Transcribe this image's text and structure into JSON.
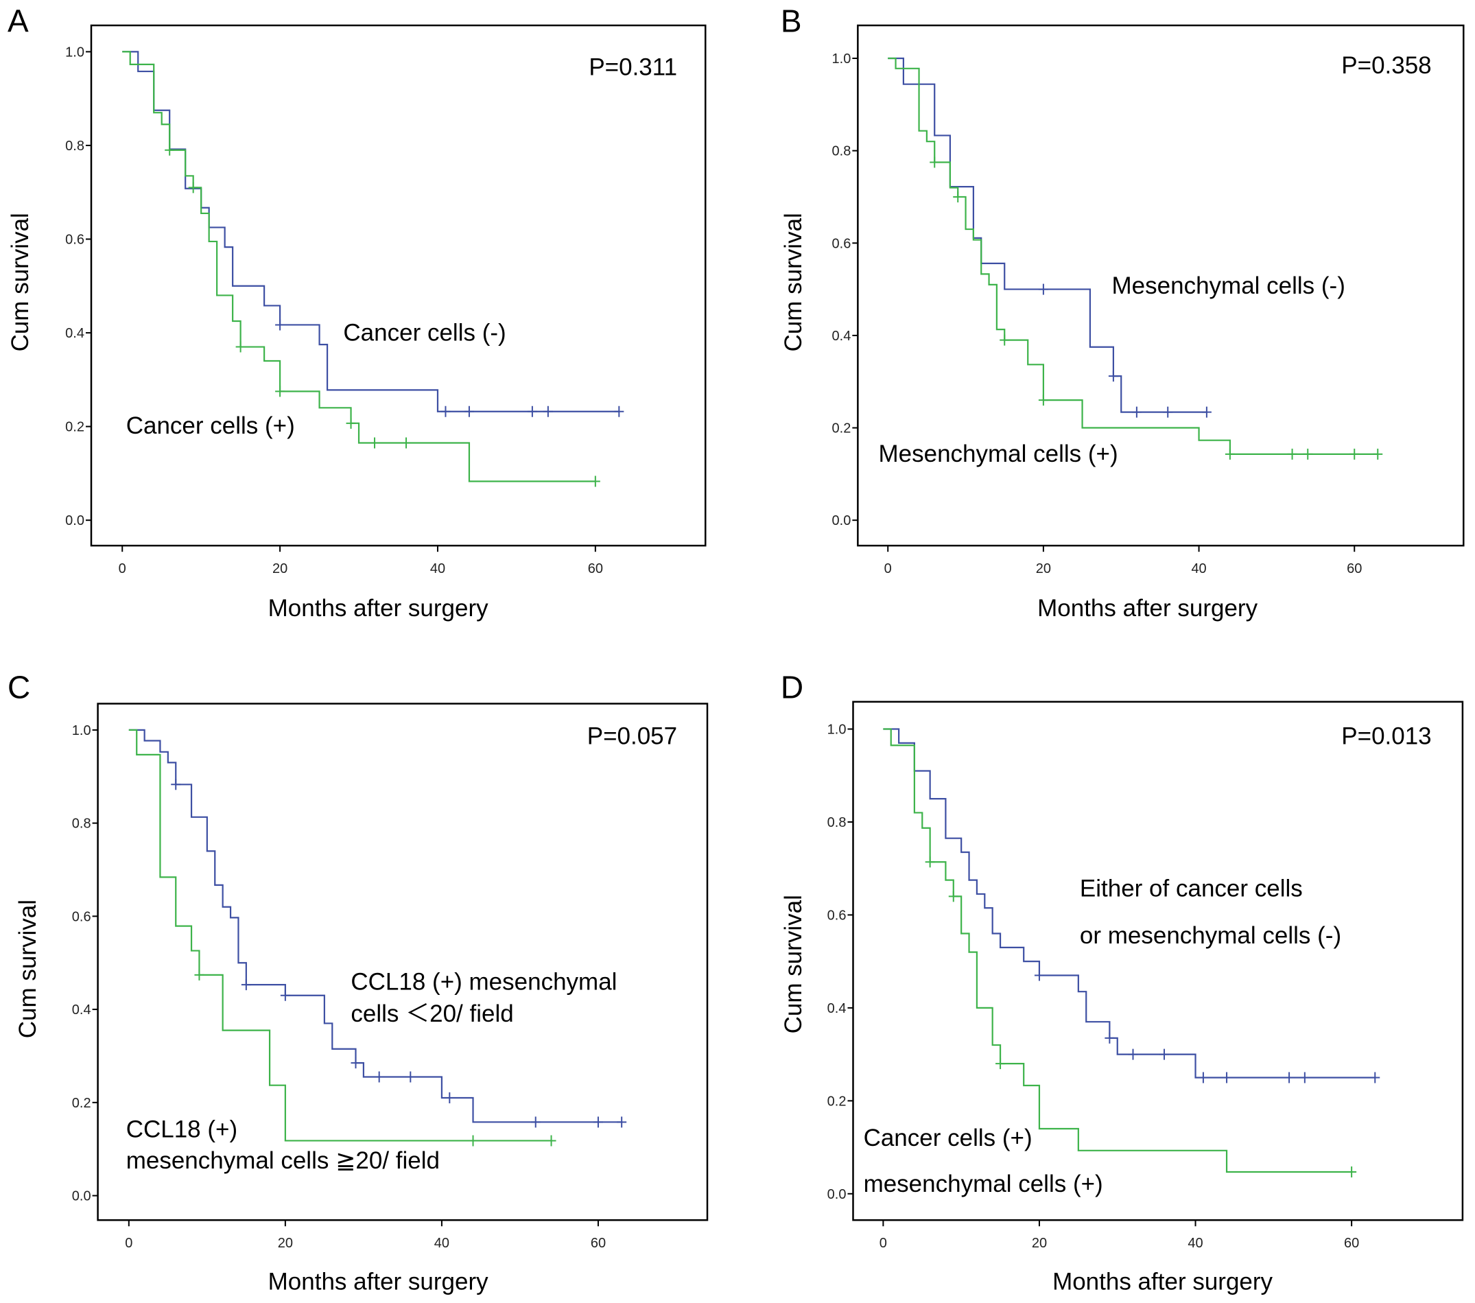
{
  "colors": {
    "blue": "#3d4fa3",
    "green": "#3db34a"
  },
  "chart_data": [
    {
      "type": "line",
      "subtype": "kaplan-meier",
      "panel": "A",
      "p_value": "P=0.311",
      "xlabel": "Months after surgery",
      "ylabel": "Cum survival",
      "xlim": [
        0,
        70
      ],
      "ylim": [
        0,
        1.0
      ],
      "xticks": [
        "0",
        "20",
        "40",
        "60"
      ],
      "yticks": [
        "0.0",
        "0.2",
        "0.4",
        "0.6",
        "0.8",
        "1.0"
      ],
      "labels": [
        "Cancer cells (-)",
        "Cancer cells (+)"
      ],
      "series": [
        {
          "name": "Cancer cells (-)",
          "color": "blue",
          "end": 63,
          "steps": [
            [
              0,
              1
            ],
            [
              2,
              0.958
            ],
            [
              4,
              0.875
            ],
            [
              6,
              0.792
            ],
            [
              8,
              0.708
            ],
            [
              10,
              0.667
            ],
            [
              11,
              0.625
            ],
            [
              13,
              0.583
            ],
            [
              14,
              0.5
            ],
            [
              18,
              0.458
            ],
            [
              20,
              0.417
            ],
            [
              25,
              0.375
            ],
            [
              26,
              0.278
            ],
            [
              40,
              0.232
            ]
          ],
          "censored": [
            20,
            41,
            44,
            52,
            54,
            63
          ]
        },
        {
          "name": "Cancer cells (+)",
          "color": "green",
          "end": 60,
          "steps": [
            [
              0,
              1
            ],
            [
              1,
              0.973
            ],
            [
              4,
              0.87
            ],
            [
              5,
              0.845
            ],
            [
              6,
              0.79
            ],
            [
              8,
              0.735
            ],
            [
              9,
              0.71
            ],
            [
              10,
              0.655
            ],
            [
              11,
              0.595
            ],
            [
              12,
              0.48
            ],
            [
              14,
              0.425
            ],
            [
              15,
              0.37
            ],
            [
              18,
              0.34
            ],
            [
              20,
              0.275
            ],
            [
              25,
              0.24
            ],
            [
              29,
              0.207
            ],
            [
              30,
              0.165
            ],
            [
              44,
              0.083
            ]
          ],
          "censored": [
            6,
            9,
            15,
            20,
            29,
            32,
            36,
            60
          ]
        }
      ]
    },
    {
      "type": "line",
      "subtype": "kaplan-meier",
      "panel": "B",
      "p_value": "P=0.358",
      "xlabel": "Months after surgery",
      "ylabel": "Cum survival",
      "xlim": [
        0,
        70
      ],
      "ylim": [
        0,
        1.0
      ],
      "xticks": [
        "0",
        "20",
        "40",
        "60"
      ],
      "yticks": [
        "0.0",
        "0.2",
        "0.4",
        "0.6",
        "0.8",
        "1.0"
      ],
      "labels": [
        "Mesenchymal cells (-)",
        "Mesenchymal cells (+)"
      ],
      "series": [
        {
          "name": "Mesenchymal cells (-)",
          "color": "blue",
          "end": 41,
          "steps": [
            [
              0,
              1
            ],
            [
              2,
              0.944
            ],
            [
              6,
              0.833
            ],
            [
              8,
              0.722
            ],
            [
              11,
              0.611
            ],
            [
              12,
              0.556
            ],
            [
              15,
              0.5
            ],
            [
              26,
              0.375
            ],
            [
              29,
              0.312
            ],
            [
              30,
              0.234
            ]
          ],
          "censored": [
            20,
            29,
            32,
            36,
            41
          ]
        },
        {
          "name": "Mesenchymal cells (+)",
          "color": "green",
          "end": 63,
          "steps": [
            [
              0,
              1
            ],
            [
              1,
              0.978
            ],
            [
              4,
              0.843
            ],
            [
              5,
              0.82
            ],
            [
              6,
              0.775
            ],
            [
              8,
              0.72
            ],
            [
              9,
              0.7
            ],
            [
              10,
              0.63
            ],
            [
              11,
              0.607
            ],
            [
              12,
              0.533
            ],
            [
              13,
              0.51
            ],
            [
              14,
              0.413
            ],
            [
              15,
              0.39
            ],
            [
              18,
              0.337
            ],
            [
              20,
              0.26
            ],
            [
              25,
              0.2
            ],
            [
              40,
              0.173
            ],
            [
              44,
              0.143
            ]
          ],
          "censored": [
            6,
            9,
            15,
            20,
            44,
            52,
            54,
            60,
            63
          ]
        }
      ]
    },
    {
      "type": "line",
      "subtype": "kaplan-meier",
      "panel": "C",
      "p_value": "P=0.057",
      "xlabel": "Months after surgery",
      "ylabel": "Cum survival",
      "xlim": [
        0,
        70
      ],
      "ylim": [
        0,
        1.0
      ],
      "xticks": [
        "0",
        "20",
        "40",
        "60"
      ],
      "yticks": [
        "0.0",
        "0.2",
        "0.4",
        "0.6",
        "0.8",
        "1.0"
      ],
      "labels": [
        "CCL18 (+) mesenchymal",
        "cells ＜20/ field",
        "CCL18 (+)",
        "mesenchymal cells ≧20/ field"
      ],
      "series": [
        {
          "name": "CCL18 (+) mesenchymal cells <20/ field",
          "color": "blue",
          "end": 63,
          "steps": [
            [
              0,
              1
            ],
            [
              2,
              0.977
            ],
            [
              4,
              0.953
            ],
            [
              5,
              0.93
            ],
            [
              6,
              0.883
            ],
            [
              8,
              0.813
            ],
            [
              10,
              0.74
            ],
            [
              11,
              0.667
            ],
            [
              12,
              0.62
            ],
            [
              13,
              0.597
            ],
            [
              14,
              0.5
            ],
            [
              15,
              0.453
            ],
            [
              20,
              0.43
            ],
            [
              25,
              0.37
            ],
            [
              26,
              0.315
            ],
            [
              29,
              0.285
            ],
            [
              30,
              0.255
            ],
            [
              40,
              0.21
            ],
            [
              44,
              0.158
            ]
          ],
          "censored": [
            6,
            15,
            20,
            29,
            32,
            36,
            41,
            52,
            60,
            63
          ]
        },
        {
          "name": "CCL18 (+) mesenchymal cells >=20/ field",
          "color": "green",
          "end": 54,
          "steps": [
            [
              0,
              1
            ],
            [
              1,
              0.947
            ],
            [
              4,
              0.684
            ],
            [
              6,
              0.579
            ],
            [
              8,
              0.526
            ],
            [
              9,
              0.474
            ],
            [
              12,
              0.355
            ],
            [
              18,
              0.237
            ],
            [
              20,
              0.118
            ]
          ],
          "censored": [
            9,
            44,
            54
          ]
        }
      ]
    },
    {
      "type": "line",
      "subtype": "kaplan-meier",
      "panel": "D",
      "p_value": "P=0.013",
      "xlabel": "Months after surgery",
      "ylabel": "Cum survival",
      "xlim": [
        0,
        70
      ],
      "ylim": [
        0,
        1.0
      ],
      "xticks": [
        "0",
        "20",
        "40",
        "60"
      ],
      "yticks": [
        "0.0",
        "0.2",
        "0.4",
        "0.6",
        "0.8",
        "1.0"
      ],
      "labels": [
        "Either of cancer cells",
        "or mesenchymal cells (-)",
        "Cancer cells (+)",
        "mesenchymal cells (+)"
      ],
      "series": [
        {
          "name": "Either of cancer cells or mesenchymal cells (-)",
          "color": "blue",
          "end": 63,
          "steps": [
            [
              0,
              1
            ],
            [
              2,
              0.97
            ],
            [
              4,
              0.91
            ],
            [
              6,
              0.85
            ],
            [
              8,
              0.765
            ],
            [
              10,
              0.735
            ],
            [
              11,
              0.675
            ],
            [
              12,
              0.645
            ],
            [
              13,
              0.615
            ],
            [
              14,
              0.56
            ],
            [
              15,
              0.53
            ],
            [
              18,
              0.5
            ],
            [
              20,
              0.47
            ],
            [
              25,
              0.435
            ],
            [
              26,
              0.37
            ],
            [
              29,
              0.335
            ],
            [
              30,
              0.3
            ],
            [
              40,
              0.25
            ]
          ],
          "censored": [
            20,
            29,
            32,
            36,
            41,
            44,
            52,
            54,
            63
          ]
        },
        {
          "name": "Cancer cells (+) mesenchymal cells (+)",
          "color": "green",
          "end": 60,
          "steps": [
            [
              0,
              1
            ],
            [
              1,
              0.965
            ],
            [
              4,
              0.82
            ],
            [
              5,
              0.787
            ],
            [
              6,
              0.714
            ],
            [
              8,
              0.675
            ],
            [
              9,
              0.64
            ],
            [
              10,
              0.56
            ],
            [
              11,
              0.52
            ],
            [
              12,
              0.4
            ],
            [
              14,
              0.32
            ],
            [
              15,
              0.28
            ],
            [
              18,
              0.233
            ],
            [
              20,
              0.14
            ],
            [
              25,
              0.093
            ],
            [
              44,
              0.047
            ]
          ],
          "censored": [
            6,
            9,
            15,
            60
          ]
        }
      ]
    }
  ]
}
